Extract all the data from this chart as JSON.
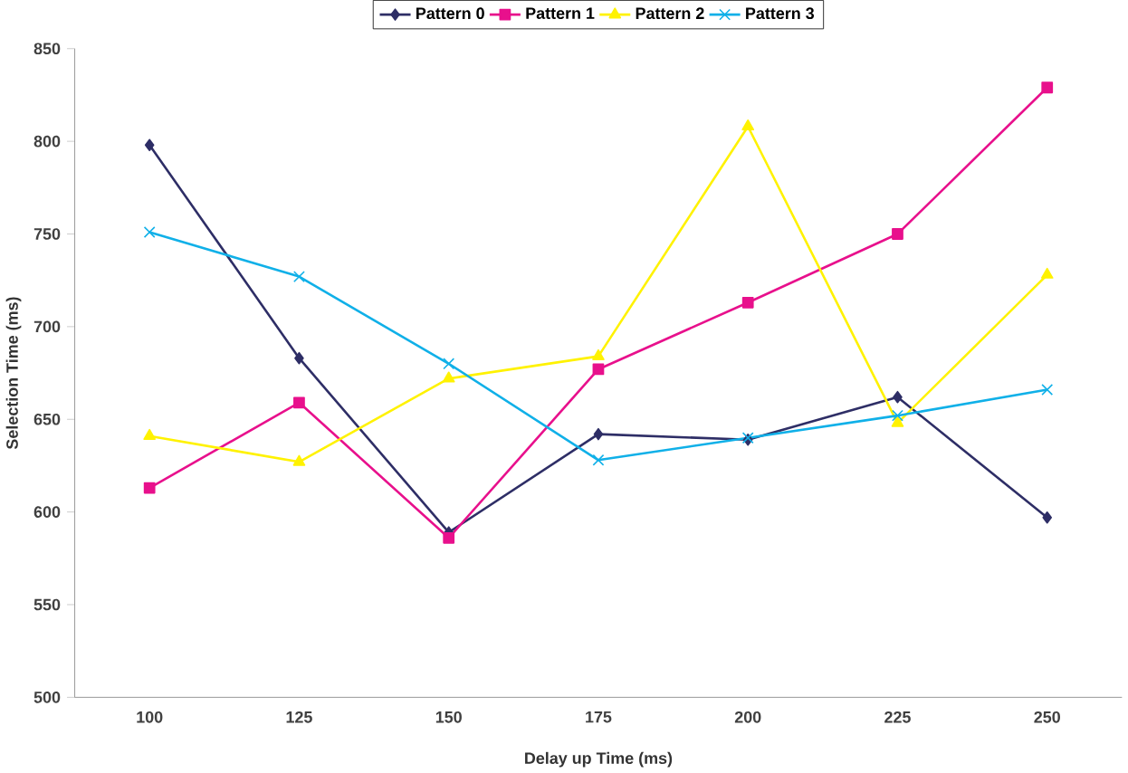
{
  "chart_data": {
    "type": "line",
    "xlabel": "Delay up Time (ms)",
    "ylabel": "Selection Time (ms)",
    "categories": [
      "100",
      "125",
      "150",
      "175",
      "200",
      "225",
      "250"
    ],
    "ylim": [
      500,
      850
    ],
    "yticks": [
      500,
      550,
      600,
      650,
      700,
      750,
      800,
      850
    ],
    "grid": false,
    "legend": "top",
    "series": [
      {
        "name": "Pattern 0",
        "color": "#2e2e66",
        "marker": "diamond",
        "values": [
          798,
          683,
          589,
          642,
          639,
          662,
          597
        ]
      },
      {
        "name": "Pattern 1",
        "color": "#e8108c",
        "marker": "square",
        "values": [
          613,
          659,
          586,
          677,
          713,
          750,
          829
        ]
      },
      {
        "name": "Pattern 2",
        "color": "#fff200",
        "marker": "triangle",
        "values": [
          641,
          627,
          672,
          684,
          808,
          648,
          728
        ]
      },
      {
        "name": "Pattern 3",
        "color": "#10b0e8",
        "marker": "cross",
        "values": [
          751,
          727,
          680,
          628,
          640,
          652,
          666
        ]
      }
    ]
  }
}
